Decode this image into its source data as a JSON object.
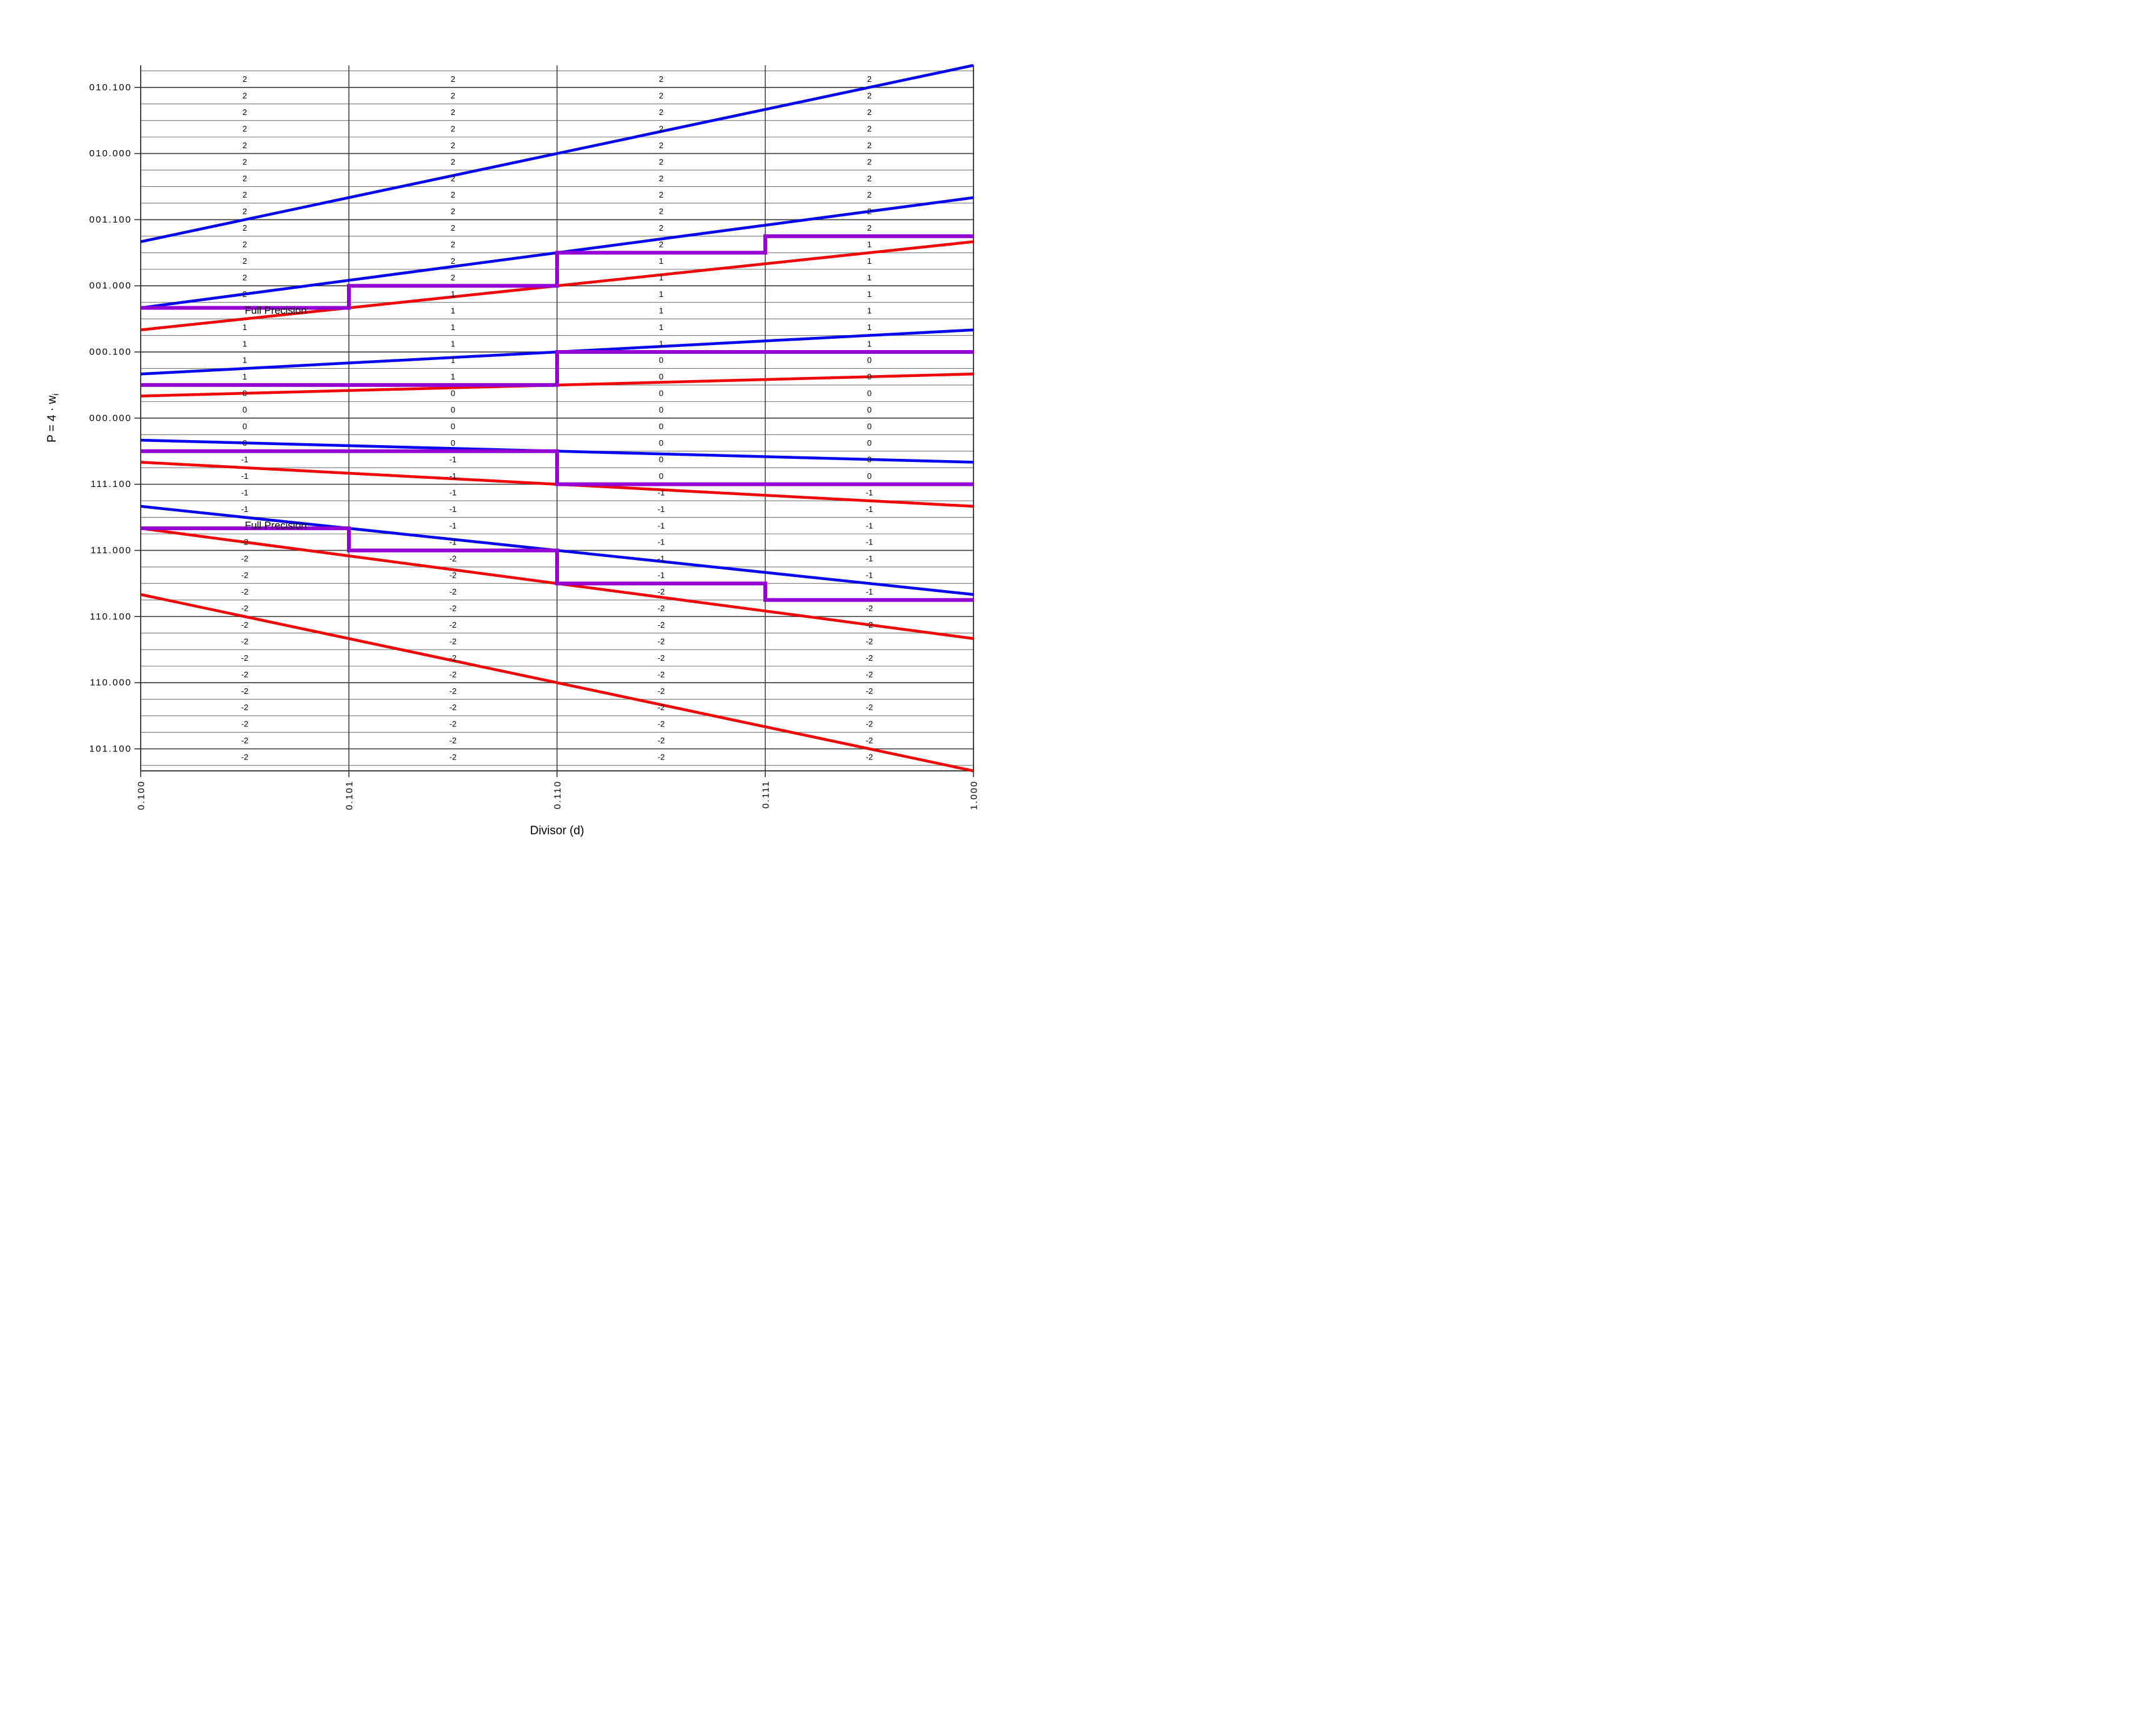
{
  "chart_data": {
    "type": "line",
    "title": "",
    "xlabel": "Divisor (d)",
    "ylabel_main": "P = 4 · w",
    "ylabel_sub": "i",
    "xlim": [
      0.5,
      1.0
    ],
    "ylim": [
      -2.6666667,
      2.6666667
    ],
    "grid": {
      "y_minor_step": 0.125,
      "y_major_step": 0.5,
      "x_lines_at_ticks": true,
      "legend": "none"
    },
    "x_ticks": [
      {
        "value": 0.5,
        "label": "0.100"
      },
      {
        "value": 0.625,
        "label": "0.101"
      },
      {
        "value": 0.75,
        "label": "0.110"
      },
      {
        "value": 0.875,
        "label": "0.111"
      },
      {
        "value": 1.0,
        "label": "1.000"
      }
    ],
    "y_ticks": [
      {
        "value": 2.5,
        "label": "010.100"
      },
      {
        "value": 2.0,
        "label": "010.000"
      },
      {
        "value": 1.5,
        "label": "001.100"
      },
      {
        "value": 1.0,
        "label": "001.000"
      },
      {
        "value": 0.5,
        "label": "000.100"
      },
      {
        "value": 0.0,
        "label": "000.000"
      },
      {
        "value": -0.5,
        "label": "111.100"
      },
      {
        "value": -1.0,
        "label": "111.000"
      },
      {
        "value": -1.5,
        "label": "110.100"
      },
      {
        "value": -2.0,
        "label": "110.000"
      },
      {
        "value": -2.5,
        "label": "101.100"
      }
    ],
    "column_edges": [
      0.5,
      0.625,
      0.75,
      0.875,
      1.0
    ],
    "upper_bound_lines": {
      "description": "Blue lines U_k = (k + 2/3) * d for k = 2,1,0,-1,-2 over d in [0.5,1.0]",
      "color": "#0404f0",
      "slopes": [
        2.6666667,
        1.6666667,
        0.6666667,
        -0.3333333,
        -1.3333333
      ]
    },
    "lower_bound_lines": {
      "description": "Red lines L_k = (k - 2/3) * d for k = 2,1,0,-1,-2 over d in [0.5,1.0]",
      "color": "#f00404",
      "slopes": [
        1.3333333,
        0.3333333,
        -0.6666667,
        -1.6666667,
        -2.6666667
      ]
    },
    "staircases": {
      "description": "Purple quotient-digit selection staircases; constant P level per divisor column, steps at column edges",
      "color": "#9400d3",
      "levels": [
        [
          0.8333333,
          1.0,
          1.25,
          1.375
        ],
        [
          0.25,
          0.25,
          0.5,
          0.5
        ],
        [
          -0.25,
          -0.25,
          -0.5,
          -0.5
        ],
        [
          -0.8333333,
          -1.0,
          -1.25,
          -1.375
        ]
      ]
    },
    "cell_digits": {
      "description": "Selected quotient digit per grid cell; 42 rows (P from [2.5,2.625] down to [-2.625,-2.5]) x 4 divisor columns; null = cell occupied by Full Precision annotation",
      "row_p_center_start": 2.5625,
      "row_p_step": -0.125,
      "rows": [
        [
          "2",
          "2",
          "2",
          "2"
        ],
        [
          "2",
          "2",
          "2",
          "2"
        ],
        [
          "2",
          "2",
          "2",
          "2"
        ],
        [
          "2",
          "2",
          "2",
          "2"
        ],
        [
          "2",
          "2",
          "2",
          "2"
        ],
        [
          "2",
          "2",
          "2",
          "2"
        ],
        [
          "2",
          "2",
          "2",
          "2"
        ],
        [
          "2",
          "2",
          "2",
          "2"
        ],
        [
          "2",
          "2",
          "2",
          "2"
        ],
        [
          "2",
          "2",
          "2",
          "2"
        ],
        [
          "2",
          "2",
          "2",
          "1"
        ],
        [
          "2",
          "2",
          "1",
          "1"
        ],
        [
          "2",
          "2",
          "1",
          "1"
        ],
        [
          "2",
          "1",
          "1",
          "1"
        ],
        [
          null,
          "1",
          "1",
          "1"
        ],
        [
          "1",
          "1",
          "1",
          "1"
        ],
        [
          "1",
          "1",
          "1",
          "1"
        ],
        [
          "1",
          "1",
          "0",
          "0"
        ],
        [
          "1",
          "1",
          "0",
          "0"
        ],
        [
          "0",
          "0",
          "0",
          "0"
        ],
        [
          "0",
          "0",
          "0",
          "0"
        ],
        [
          "0",
          "0",
          "0",
          "0"
        ],
        [
          "0",
          "0",
          "0",
          "0"
        ],
        [
          "-1",
          "-1",
          "0",
          "0"
        ],
        [
          "-1",
          "-1",
          "0",
          "0"
        ],
        [
          "-1",
          "-1",
          "-1",
          "-1"
        ],
        [
          "-1",
          "-1",
          "-1",
          "-1"
        ],
        [
          null,
          "-1",
          "-1",
          "-1"
        ],
        [
          "-2",
          "-1",
          "-1",
          "-1"
        ],
        [
          "-2",
          "-2",
          "-1",
          "-1"
        ],
        [
          "-2",
          "-2",
          "-1",
          "-1"
        ],
        [
          "-2",
          "-2",
          "-2",
          "-1"
        ],
        [
          "-2",
          "-2",
          "-2",
          "-2"
        ],
        [
          "-2",
          "-2",
          "-2",
          "-2"
        ],
        [
          "-2",
          "-2",
          "-2",
          "-2"
        ],
        [
          "-2",
          "-2",
          "-2",
          "-2"
        ],
        [
          "-2",
          "-2",
          "-2",
          "-2"
        ],
        [
          "-2",
          "-2",
          "-2",
          "-2"
        ],
        [
          "-2",
          "-2",
          "-2",
          "-2"
        ],
        [
          "-2",
          "-2",
          "-2",
          "-2"
        ],
        [
          "-2",
          "-2",
          "-2",
          "-2"
        ],
        [
          "-2",
          "-2",
          "-2",
          "-2"
        ]
      ]
    },
    "annotations": [
      {
        "text": "Full Precision",
        "col": 0,
        "row": 14
      },
      {
        "text": "Full Precision",
        "col": 0,
        "row": 27
      }
    ],
    "style": {
      "grid_minor_color": "#7a7a7a",
      "grid_major_color": "#3d3d3d",
      "spine_color": "#2b2b2b",
      "text_color": "#000000",
      "background": "#ffffff"
    }
  }
}
